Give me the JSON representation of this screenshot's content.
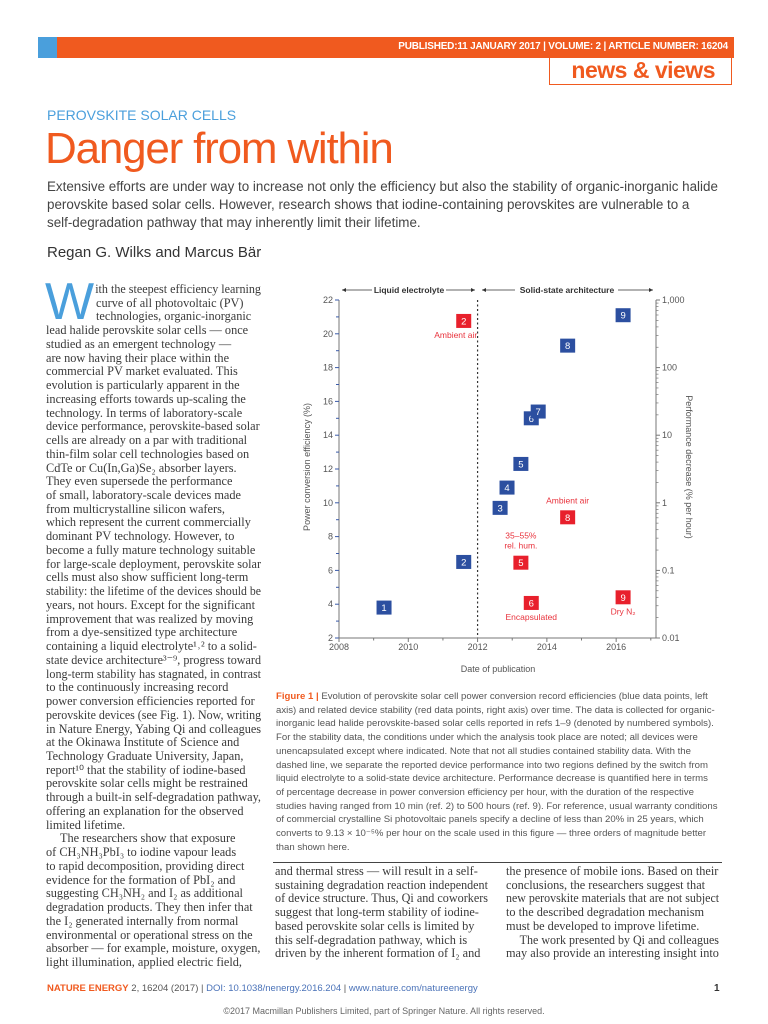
{
  "header": {
    "pubinfo": "PUBLISHED:11 JANUARY 2017 | VOLUME: 2 | ARTICLE NUMBER: 16204",
    "section": "news & views",
    "accent_color": "#f05a1f",
    "secondary_color": "#4a9fdc"
  },
  "article": {
    "kicker": "PEROVSKITE SOLAR CELLS",
    "title": "Danger from within",
    "standfirst": [
      "Extensive efforts are under way to increase not only the efficiency but also the stability of organic-inorganic halide",
      "perovskite based solar cells. However, research shows that iodine-containing perovskites are vulnerable to a",
      "self-degradation pathway that may inherently limit their lifetime."
    ],
    "authors": "Regan G. Wilks and Marcus Bär",
    "dropcap": "W",
    "col1": [
      "ith the steepest efficiency learning",
      "curve of all photovoltaic (PV)",
      "technologies, organic-inorganic",
      "lead halide perovskite solar cells — once",
      "studied as an emergent technology —",
      "are now having their place within the",
      "commercial PV market evaluated. This",
      "evolution is particularly apparent in the",
      "increasing efforts towards up-scaling the",
      "technology. In terms of laboratory-scale",
      "device performance, perovskite-based solar",
      "cells are already on a par with traditional",
      "thin-film solar cell technologies based on",
      "CdTe or Cu(In,Ga)Se₂ absorber layers.",
      "They even supersede the performance",
      "of small, laboratory-scale devices made",
      "from multicrystalline silicon wafers,",
      "which represent the current commercially",
      "dominant PV technology. However, to",
      "become a fully mature technology suitable",
      "for large-scale deployment, perovskite solar",
      "cells must also show sufficient long-term",
      "stability: the lifetime of the devices should be",
      "years, not hours. Except for the significant",
      "improvement that was realized by moving",
      "from a dye-sensitized type architecture",
      "containing a liquid electrolyte¹˒² to a solid-",
      "state device architecture³⁻⁹, progress toward",
      "long-term stability has stagnated, in contrast",
      "to the continuously increasing record",
      "power conversion efficiencies reported for",
      "perovskite devices (see Fig. 1). Now, writing",
      "in Nature Energy, Yabing Qi and colleagues",
      "at the Okinawa Institute of Science and",
      "Technology Graduate University, Japan,",
      "report¹⁰ that the stability of iodine-based",
      "perovskite solar cells might be restrained",
      "through a built-in self-degradation pathway,",
      "offering an explanation for the observed",
      "limited lifetime.",
      "The researchers show that exposure",
      "of CH₃NH₃PbI₃ to iodine vapour leads",
      "to rapid decomposition, providing direct",
      "evidence for the formation of PbI₂ and",
      "suggesting CH₃NH₂ and I₂ as additional",
      "degradation products. They then infer that",
      "the I₂ generated internally from normal",
      "environmental or operational stress on the",
      "absorber — for example, moisture, oxygen,",
      "light illumination, applied electric field,"
    ],
    "col2": [
      "and thermal stress — will result in a self-",
      "sustaining degradation reaction independent",
      "of device structure. Thus, Qi and coworkers",
      "suggest that long-term stability of iodine-",
      "based perovskite solar cells is limited by",
      "this self-degradation pathway, which is",
      "driven by the inherent formation of I₂ and"
    ],
    "col3": [
      "the presence of mobile ions. Based on their",
      "conclusions, the researchers suggest that",
      "new perovskite materials that are not subject",
      "to the described degradation mechanism",
      "must be developed to improve lifetime.",
      "The work presented by Qi and colleagues",
      "may also provide an interesting insight into"
    ]
  },
  "caption": {
    "label": "Figure 1 | ",
    "lines": [
      "Evolution of perovskite solar cell power conversion record efficiencies (blue data points, left",
      "axis) and related device stability (red data points, right axis) over time. The data is collected for organic-",
      "inorganic lead halide perovskite-based solar cells reported in refs 1–9 (denoted by numbered symbols).",
      "For the stability data, the conditions under which the analysis took place are noted; all devices were",
      "unencapsulated except where indicated. Note that not all studies contained stability data. With the",
      "dashed line, we separate the reported device performance into two regions defined by the switch from",
      "liquid electrolyte to a solid-state device architecture. Performance decrease is quantified here in terms",
      "of percentage decrease in power conversion efficiency per hour, with the duration of the respective",
      "studies having ranged from 10 min (ref. 2) to 500 hours (ref. 9). For reference, usual warranty conditions",
      "of commercial crystalline Si photovoltaic panels specify a decline of less than 20% in 25 years, which",
      "converts to 9.13 × 10⁻⁵% per hour on the scale used in this figure — three orders of magnitude better",
      "than shown here."
    ]
  },
  "chart_data": {
    "type": "scatter",
    "xlabel": "Date of publication",
    "ylabel": "Power conversion efficiency (%)",
    "y2label": "Performance decrease (% per hour)",
    "xlim": [
      2008,
      2017.15
    ],
    "ylim": [
      2,
      22
    ],
    "y2lim": [
      0.01,
      1000
    ],
    "y2scale": "log",
    "xticks": [
      "2008",
      "2010",
      "2012",
      "2014",
      "2016"
    ],
    "yticks": [
      "2",
      "4",
      "6",
      "8",
      "10",
      "12",
      "14",
      "16",
      "18",
      "20",
      "22"
    ],
    "y2ticks": [
      "0.01",
      "0.1",
      "1",
      "10",
      "100",
      "1,000"
    ],
    "divider_x": 2012,
    "regions": [
      "Liquid electrolyte",
      "Solid-state architecture"
    ],
    "colors": {
      "efficiency": "#2c4fa0",
      "stability": "#e8202c"
    },
    "series": [
      {
        "axis": "left",
        "points": [
          {
            "ref": "1",
            "x": 2009.3,
            "y": 3.8
          },
          {
            "ref": "2",
            "x": 2011.6,
            "y": 6.5
          },
          {
            "ref": "3",
            "x": 2012.65,
            "y": 9.7
          },
          {
            "ref": "4",
            "x": 2012.85,
            "y": 10.9
          },
          {
            "ref": "5",
            "x": 2013.25,
            "y": 12.3
          },
          {
            "ref": "6",
            "x": 2013.55,
            "y": 15.0
          },
          {
            "ref": "7",
            "x": 2013.75,
            "y": 15.4
          },
          {
            "ref": "8",
            "x": 2014.6,
            "y": 19.3
          },
          {
            "ref": "9",
            "x": 2016.2,
            "y": 21.1
          }
        ]
      },
      {
        "axis": "right",
        "points": [
          {
            "ref": "2",
            "x": 2011.6,
            "y": 490,
            "note": "Ambient air"
          },
          {
            "ref": "5",
            "x": 2013.25,
            "y": 0.13,
            "note": "35–55%",
            "note2": "rel. hum."
          },
          {
            "ref": "6",
            "x": 2013.55,
            "y": 0.033,
            "note": "Encapsulated"
          },
          {
            "ref": "8",
            "x": 2014.6,
            "y": 0.61,
            "note": "Ambient air"
          },
          {
            "ref": "9",
            "x": 2016.2,
            "y": 0.04,
            "note": "Dry N₂"
          }
        ]
      }
    ]
  },
  "footer": {
    "journal": "NATURE ENERGY",
    "citation": " 2, 16204 (2017) | ",
    "doi": "DOI: 10.1038/nenergy.2016.204",
    "sep": " | ",
    "url": "www.nature.com/natureenergy",
    "page": "1",
    "copyright": "©2017 Macmillan Publishers Limited, part of Springer Nature. All rights reserved."
  }
}
